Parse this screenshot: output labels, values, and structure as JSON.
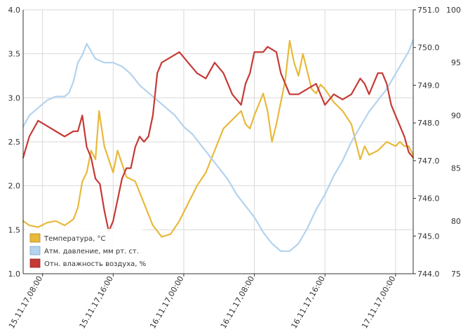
{
  "chart_data": {
    "type": "line",
    "title": "",
    "xlabel": "",
    "x_ticks": [
      "15.11.17,08:00",
      "15.11.17,16:00",
      "16.11.17,00:00",
      "16.11.17,08:00",
      "16.11.17,16:00",
      "17.11.17,00:00"
    ],
    "x_tick_positions_hours": [
      8,
      16,
      24,
      32,
      40,
      48
    ],
    "x_range_hours": [
      5.8,
      50
    ],
    "axes": {
      "left": {
        "ylim": [
          1.0,
          4.0
        ],
        "ticks": [
          "1.0",
          "1.5",
          "2.0",
          "2.5",
          "3.0",
          "3.5",
          "4.0"
        ],
        "tick_values": [
          1.0,
          1.5,
          2.0,
          2.5,
          3.0,
          3.5,
          4.0
        ]
      },
      "right1": {
        "ylim": [
          744.0,
          751.0
        ],
        "ticks": [
          "744.0",
          "745.0",
          "746.0",
          "747.0",
          "748.0",
          "749.0",
          "750.0",
          "751.0"
        ],
        "tick_values": [
          744,
          745,
          746,
          747,
          748,
          749,
          750,
          751
        ]
      },
      "right2": {
        "ylim": [
          75,
          100
        ],
        "ticks": [
          "75",
          "80",
          "85",
          "90",
          "95",
          "100"
        ],
        "tick_values": [
          75,
          80,
          85,
          90,
          95,
          100
        ]
      }
    },
    "grid": true,
    "legend_position": "bottom-left",
    "series": [
      {
        "name": "Температура, °C",
        "color": "#e8b93a",
        "axis": "left",
        "x": [
          5.8,
          6.5,
          7.5,
          8.5,
          9.5,
          10.5,
          11.5,
          12.0,
          12.5,
          13.0,
          13.5,
          14.0,
          14.4,
          15.0,
          15.5,
          16.0,
          16.5,
          17.5,
          18.5,
          19.5,
          20.5,
          21.5,
          22.5,
          23.5,
          24.5,
          25.5,
          26.5,
          27.5,
          28.5,
          29.5,
          30.5,
          31.0,
          31.5,
          32.0,
          33.0,
          33.5,
          34.0,
          34.5,
          35.0,
          35.5,
          36.0,
          36.5,
          37.0,
          37.5,
          38.0,
          38.5,
          39.0,
          39.5,
          40.0,
          41.0,
          42.0,
          43.0,
          43.5,
          44.0,
          44.5,
          45.0,
          46.0,
          47.0,
          48.0,
          48.5,
          49.0,
          49.5,
          50.0
        ],
        "y": [
          1.6,
          1.55,
          1.53,
          1.58,
          1.6,
          1.55,
          1.62,
          1.75,
          2.05,
          2.15,
          2.4,
          2.3,
          2.85,
          2.45,
          2.3,
          2.15,
          2.4,
          2.1,
          2.05,
          1.8,
          1.55,
          1.42,
          1.45,
          1.6,
          1.8,
          2.0,
          2.15,
          2.4,
          2.65,
          2.75,
          2.85,
          2.7,
          2.65,
          2.8,
          3.05,
          2.85,
          2.5,
          2.7,
          2.95,
          3.2,
          3.65,
          3.4,
          3.25,
          3.5,
          3.3,
          3.1,
          3.05,
          3.15,
          3.1,
          2.95,
          2.85,
          2.7,
          2.5,
          2.3,
          2.45,
          2.35,
          2.4,
          2.5,
          2.45,
          2.5,
          2.45,
          2.45,
          2.35
        ]
      },
      {
        "name": "Атм. давление, мм рт. ст.",
        "color": "#b3d3ee",
        "axis": "right1",
        "x": [
          5.8,
          6.5,
          7.5,
          8.5,
          9.5,
          10.5,
          11.0,
          11.5,
          12.0,
          12.5,
          13.0,
          14.0,
          15.0,
          16.0,
          17.0,
          18.0,
          19.0,
          20.0,
          21.0,
          22.0,
          23.0,
          24.0,
          25.0,
          26.0,
          27.0,
          28.0,
          29.0,
          30.0,
          31.0,
          32.0,
          33.0,
          34.0,
          35.0,
          36.0,
          37.0,
          38.0,
          39.0,
          40.0,
          41.0,
          42.0,
          43.0,
          44.0,
          45.0,
          46.0,
          47.0,
          48.0,
          49.0,
          49.5,
          50.0
        ],
        "y": [
          747.9,
          748.2,
          748.4,
          748.6,
          748.7,
          748.7,
          748.8,
          749.1,
          749.6,
          749.8,
          750.1,
          749.7,
          749.6,
          749.6,
          749.5,
          749.3,
          749.0,
          748.8,
          748.6,
          748.4,
          748.2,
          747.9,
          747.7,
          747.4,
          747.1,
          746.8,
          746.5,
          746.1,
          745.8,
          745.5,
          745.1,
          744.8,
          744.6,
          744.6,
          744.8,
          745.2,
          745.7,
          746.1,
          746.6,
          747.0,
          747.5,
          747.9,
          748.3,
          748.6,
          748.9,
          749.3,
          749.7,
          749.9,
          750.2
        ]
      },
      {
        "name": "Отн. влажность воздуха, %",
        "color": "#c53a35",
        "axis": "right2",
        "x": [
          5.8,
          6.5,
          7.5,
          8.5,
          9.5,
          10.5,
          11.5,
          12.0,
          12.5,
          13.0,
          13.5,
          14.0,
          14.5,
          15.0,
          15.5,
          16.0,
          16.5,
          17.0,
          17.5,
          18.0,
          18.5,
          19.0,
          19.5,
          20.0,
          20.5,
          21.0,
          21.5,
          22.5,
          23.5,
          24.5,
          25.5,
          26.5,
          27.5,
          28.5,
          29.5,
          30.5,
          31.0,
          31.5,
          32.0,
          33.0,
          33.5,
          34.5,
          35.0,
          36.0,
          37.0,
          38.0,
          39.0,
          40.0,
          41.0,
          42.0,
          43.0,
          44.0,
          44.5,
          45.0,
          46.0,
          46.5,
          47.0,
          47.5,
          48.0,
          48.5,
          49.0,
          49.5,
          50.0
        ],
        "y": [
          86,
          88,
          89.5,
          89,
          88.5,
          88,
          88.5,
          88.5,
          90,
          87,
          86,
          84,
          83.5,
          81,
          79,
          80,
          82,
          84,
          85,
          85,
          87,
          88,
          87.5,
          88,
          90,
          94,
          95,
          95.5,
          96,
          95,
          94,
          93.5,
          95,
          94,
          92,
          91,
          93,
          94,
          96,
          96,
          96.5,
          96,
          94,
          92,
          92,
          92.5,
          93,
          91,
          92,
          91.5,
          92,
          93.5,
          93,
          92,
          94,
          94,
          93,
          91,
          90,
          89,
          88,
          86.5,
          86
        ]
      }
    ]
  }
}
